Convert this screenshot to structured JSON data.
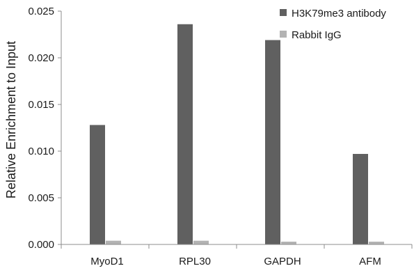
{
  "chart_data": {
    "type": "bar",
    "title": "",
    "xlabel": "",
    "ylabel": "Relative Enrichment to Input",
    "ylim": [
      0,
      0.025
    ],
    "yticks": [
      "0.000",
      "0.005",
      "0.010",
      "0.015",
      "0.020",
      "0.025"
    ],
    "categories": [
      "MyoD1",
      "RPL30",
      "GAPDH",
      "AFM"
    ],
    "legend_position": "top-right",
    "grid": false,
    "series": [
      {
        "name": "H3K79me3 antibody",
        "color": "#606060",
        "values": [
          0.0128,
          0.0236,
          0.0219,
          0.0097
        ]
      },
      {
        "name": "Rabbit IgG",
        "color": "#b3b3b3",
        "values": [
          0.0004,
          0.0004,
          0.0003,
          0.0003
        ]
      }
    ]
  }
}
